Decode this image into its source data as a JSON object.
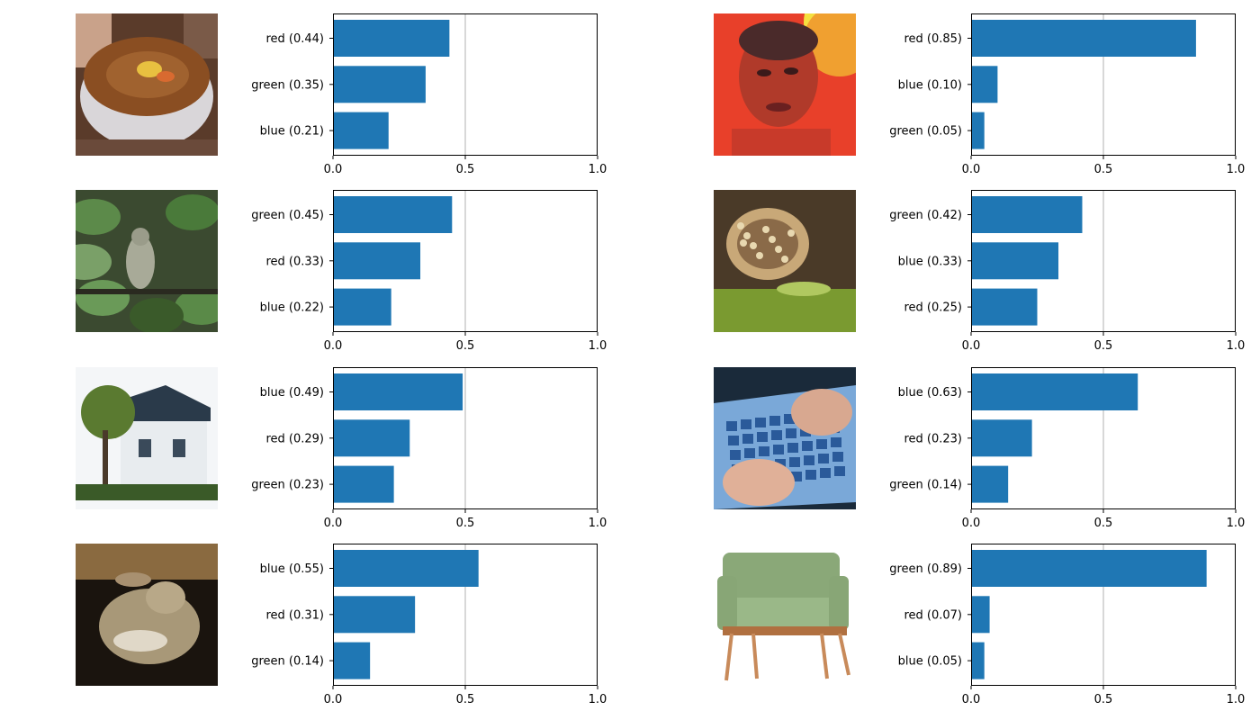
{
  "figure": {
    "bar_color": "#1f77b4",
    "grid_color": "#b0b0b0"
  },
  "panels": [
    {
      "image": "soup-bowl",
      "chart_data": {
        "type": "bar",
        "orientation": "horizontal",
        "categories": [
          "red (0.44)",
          "green (0.35)",
          "blue (0.21)"
        ],
        "values": [
          0.44,
          0.35,
          0.21
        ],
        "xlim": [
          0,
          1.0
        ],
        "xticks": [
          "0.0",
          "0.5",
          "1.0"
        ],
        "grid": "vertical line at 0.5"
      }
    },
    {
      "image": "man-portrait-red",
      "chart_data": {
        "type": "bar",
        "orientation": "horizontal",
        "categories": [
          "red (0.85)",
          "blue (0.10)",
          "green (0.05)"
        ],
        "values": [
          0.85,
          0.1,
          0.05
        ],
        "xlim": [
          0,
          1.0
        ],
        "xticks": [
          "0.0",
          "0.5",
          "1.0"
        ],
        "grid": "vertical line at 0.5"
      }
    },
    {
      "image": "bird-in-foliage",
      "chart_data": {
        "type": "bar",
        "orientation": "horizontal",
        "categories": [
          "green (0.45)",
          "red (0.33)",
          "blue (0.22)"
        ],
        "values": [
          0.45,
          0.33,
          0.22
        ],
        "xlim": [
          0,
          1.0
        ],
        "xticks": [
          "0.0",
          "0.5",
          "1.0"
        ],
        "grid": "vertical line at 0.5"
      }
    },
    {
      "image": "butterfly-on-grass",
      "chart_data": {
        "type": "bar",
        "orientation": "horizontal",
        "categories": [
          "green (0.42)",
          "blue (0.33)",
          "red (0.25)"
        ],
        "values": [
          0.42,
          0.33,
          0.25
        ],
        "xlim": [
          0,
          1.0
        ],
        "xticks": [
          "0.0",
          "0.5",
          "1.0"
        ],
        "grid": "vertical line at 0.5"
      }
    },
    {
      "image": "house-with-trees",
      "chart_data": {
        "type": "bar",
        "orientation": "horizontal",
        "categories": [
          "blue (0.49)",
          "red (0.29)",
          "green (0.23)"
        ],
        "values": [
          0.49,
          0.29,
          0.23
        ],
        "xlim": [
          0,
          1.0
        ],
        "xticks": [
          "0.0",
          "0.5",
          "1.0"
        ],
        "grid": "vertical line at 0.5"
      }
    },
    {
      "image": "hands-on-keyboard",
      "chart_data": {
        "type": "bar",
        "orientation": "horizontal",
        "categories": [
          "blue (0.63)",
          "red (0.23)",
          "green (0.14)"
        ],
        "values": [
          0.63,
          0.23,
          0.14
        ],
        "xlim": [
          0,
          1.0
        ],
        "xticks": [
          "0.0",
          "0.5",
          "1.0"
        ],
        "grid": "vertical line at 0.5"
      }
    },
    {
      "image": "rabbit-lying",
      "chart_data": {
        "type": "bar",
        "orientation": "horizontal",
        "categories": [
          "blue (0.55)",
          "red (0.31)",
          "green (0.14)"
        ],
        "values": [
          0.55,
          0.31,
          0.14
        ],
        "xlim": [
          0,
          1.0
        ],
        "xticks": [
          "0.0",
          "0.5",
          "1.0"
        ],
        "grid": "vertical line at 0.5"
      }
    },
    {
      "image": "green-couch",
      "chart_data": {
        "type": "bar",
        "orientation": "horizontal",
        "categories": [
          "green (0.89)",
          "red (0.07)",
          "blue (0.05)"
        ],
        "values": [
          0.89,
          0.07,
          0.05
        ],
        "xlim": [
          0,
          1.0
        ],
        "xticks": [
          "0.0",
          "0.5",
          "1.0"
        ],
        "grid": "vertical line at 0.5"
      }
    }
  ]
}
